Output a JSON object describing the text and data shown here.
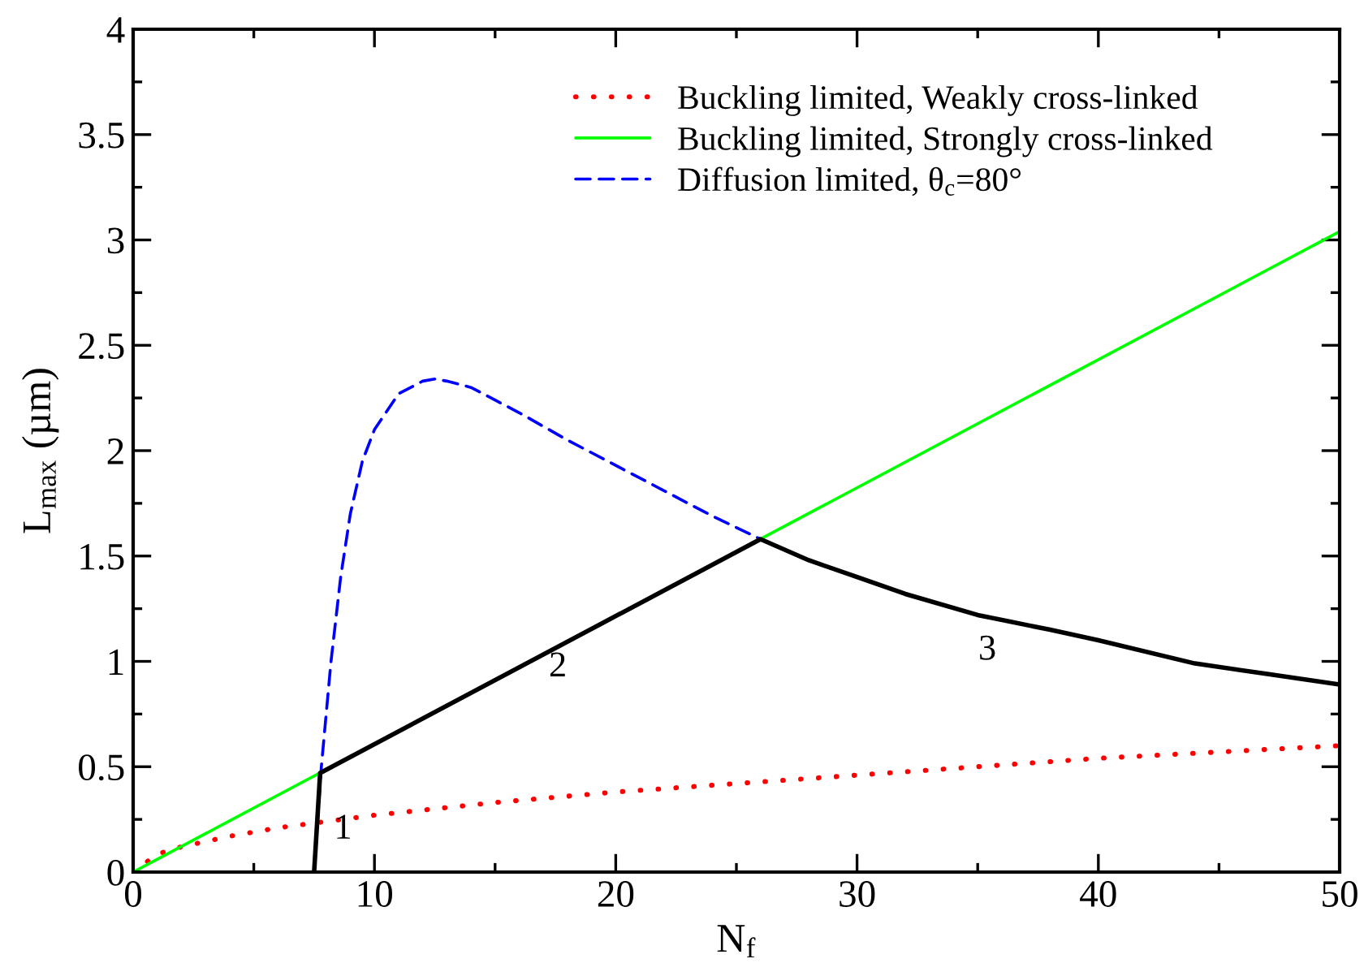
{
  "chart_data": {
    "type": "line",
    "xlabel": "N$_{f}$",
    "ylabel": "L$_{max}$ (µm)",
    "xlim": [
      0,
      50
    ],
    "ylim": [
      0,
      4
    ],
    "xticks": [
      0,
      10,
      20,
      30,
      40,
      50
    ],
    "yticks": [
      0,
      {
        "value": 0.5,
        "label": "0.5"
      },
      1,
      {
        "value": 1.5,
        "label": "1.5"
      },
      2,
      {
        "value": 2.5,
        "label": "2.5"
      },
      3,
      {
        "value": 3.5,
        "label": "3.5"
      },
      4
    ],
    "grid": false,
    "legend": "top right",
    "marker": "none",
    "series": [
      {
        "name": "Buckling limited, Weakly cross-linked",
        "color": "#ff0000",
        "line_style": "dotted",
        "x": [
          0,
          1,
          2,
          4,
          6,
          8,
          10,
          15,
          20,
          25,
          30,
          35,
          40,
          45,
          50
        ],
        "values": [
          0,
          0.085,
          0.12,
          0.17,
          0.21,
          0.24,
          0.27,
          0.33,
          0.38,
          0.42,
          0.46,
          0.5,
          0.54,
          0.57,
          0.6
        ]
      },
      {
        "name": "Buckling limited, Strongly cross-linked",
        "color": "#00ff00",
        "line_style": "solid",
        "x": [
          0,
          50
        ],
        "values": [
          0,
          3.04
        ]
      },
      {
        "name": "Diffusion limited, θ$_{c}$=80°",
        "color": "#0000ff",
        "line_style": "dashed",
        "x": [
          7.5,
          7.8,
          8.2,
          8.6,
          9,
          9.5,
          10,
          11,
          12,
          12.5,
          13,
          14,
          16,
          18,
          20,
          22,
          24,
          26
        ],
        "values": [
          0,
          0.5,
          1.0,
          1.4,
          1.7,
          1.95,
          2.1,
          2.27,
          2.33,
          2.34,
          2.33,
          2.3,
          2.18,
          2.05,
          1.93,
          1.81,
          1.69,
          1.58
        ]
      },
      {
        "color": "#000000",
        "line_style": "solid",
        "x": [
          7.5,
          7.75,
          26,
          27,
          28,
          30,
          32,
          35,
          38,
          40,
          44,
          47,
          50
        ],
        "values": [
          0,
          0.47,
          1.58,
          1.53,
          1.48,
          1.4,
          1.32,
          1.22,
          1.15,
          1.1,
          0.99,
          0.94,
          0.89
        ]
      }
    ],
    "annotations": [
      "1",
      "2",
      "3"
    ]
  }
}
